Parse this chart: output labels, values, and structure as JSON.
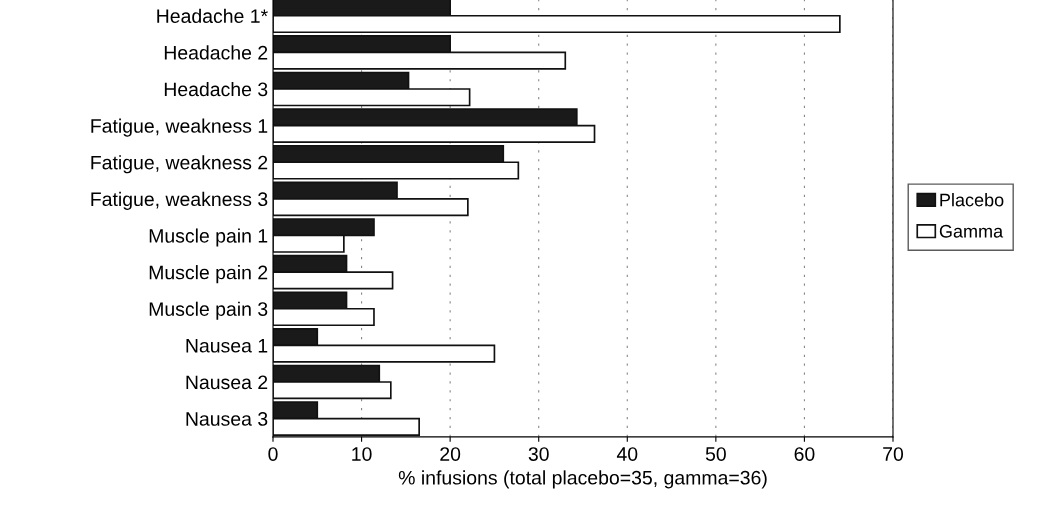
{
  "chart_data": {
    "type": "bar",
    "orientation": "horizontal",
    "xlabel": "% infusions (total placebo=35, gamma=36)",
    "categories": [
      "Headache 1*",
      "Headache 2",
      "Headache 3",
      "Fatigue, weakness 1",
      "Fatigue, weakness 2",
      "Fatigue, weakness 3",
      "Muscle pain 1",
      "Muscle pain 2",
      "Muscle pain 3",
      "Nausea 1",
      "Nausea 2",
      "Nausea 3"
    ],
    "series": [
      {
        "name": "Placebo",
        "color": "#1a1a1a",
        "values": [
          20,
          20,
          15.3,
          34.3,
          26,
          14,
          11.4,
          8.3,
          8.3,
          5,
          12,
          5
        ]
      },
      {
        "name": "Gamma",
        "color": "#ffffff",
        "values": [
          64,
          33,
          22.2,
          36.3,
          27.7,
          22,
          8,
          13.5,
          11.4,
          25,
          13.3,
          16.5
        ]
      }
    ],
    "xlim": [
      0,
      70
    ],
    "xticks": [
      0,
      10,
      20,
      30,
      40,
      50,
      60,
      70
    ],
    "grid": "x",
    "legend": "right"
  }
}
